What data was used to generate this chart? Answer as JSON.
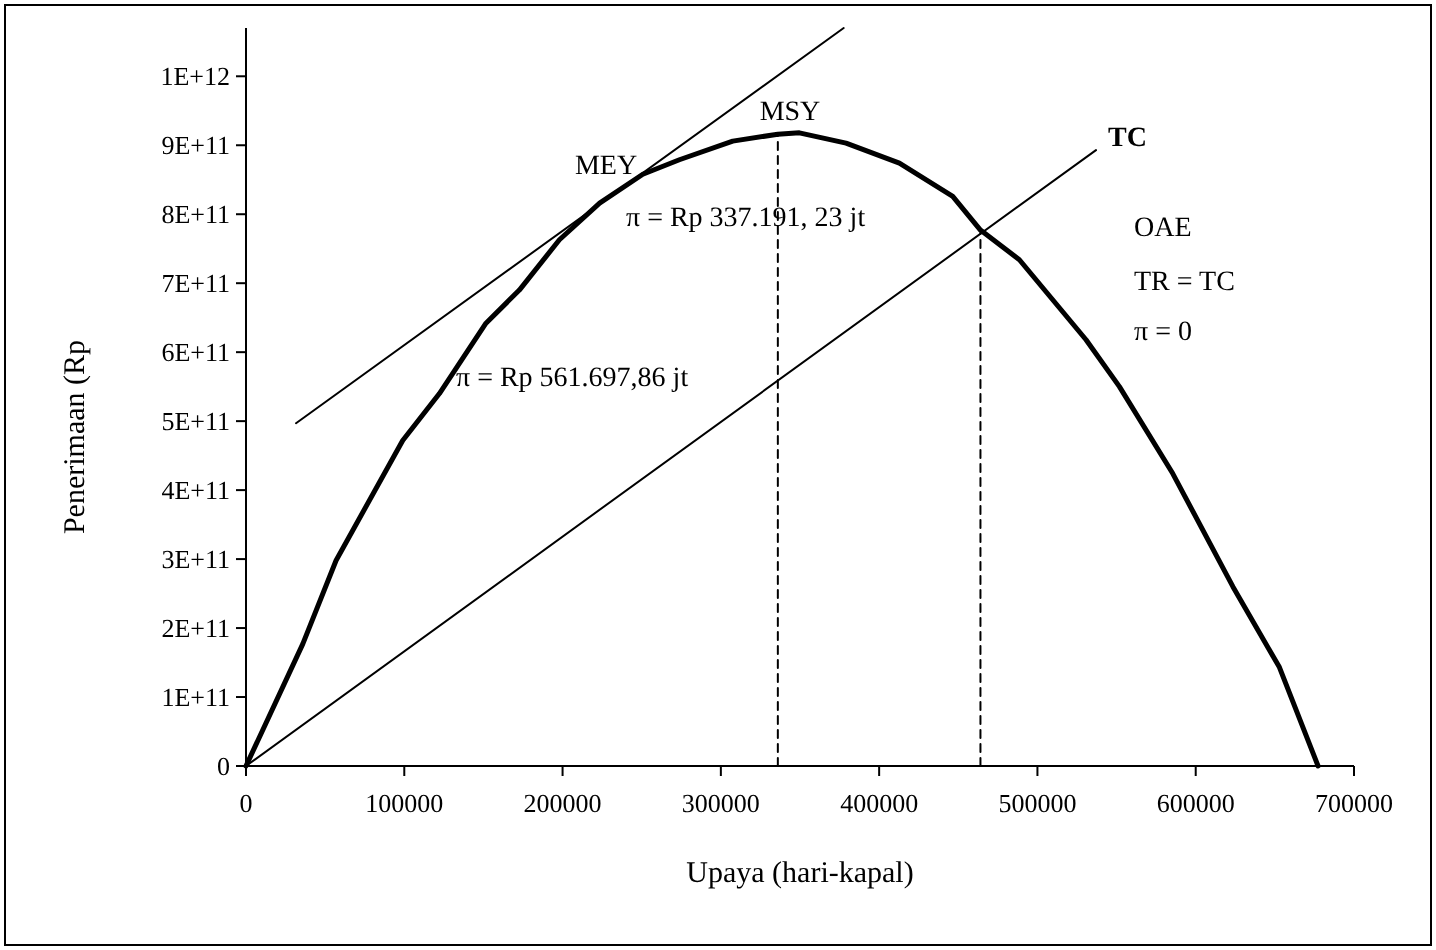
{
  "chart_data": {
    "type": "line",
    "xlabel": "Upaya (hari-kapal)",
    "ylabel": "Penerimaan (Rp",
    "xlim": [
      0,
      700000
    ],
    "xticks": [
      0,
      100000,
      200000,
      300000,
      400000,
      500000,
      600000,
      700000
    ],
    "ylim": [
      0,
      1070000000000
    ],
    "yticks": [
      0,
      {
        "value": 100000000000,
        "label": "1E+11"
      },
      {
        "value": 200000000000,
        "label": "2E+11"
      },
      {
        "value": 300000000000,
        "label": "3E+11"
      },
      {
        "value": 400000000000,
        "label": "4E+11"
      },
      {
        "value": 500000000000,
        "label": "5E+11"
      },
      {
        "value": 600000000000,
        "label": "6E+11"
      },
      {
        "value": 700000000000,
        "label": "7E+11"
      },
      {
        "value": 800000000000,
        "label": "8E+11"
      },
      {
        "value": 900000000000,
        "label": "9E+11"
      },
      {
        "value": 1000000000000,
        "label": "1E+12"
      }
    ],
    "marker": "none",
    "series": [
      {
        "color": "#000000",
        "line_style": "solid",
        "x": [
          0,
          35900,
          56900,
          99000,
          122200,
          151600,
          172700,
          198000,
          223400,
          250700,
          273800,
          307500,
          336000,
          349600,
          379100,
          412800,
          446500,
          464000,
          488600,
          530700,
          551800,
          585500,
          623500,
          652900,
          677300
        ],
        "values": [
          0,
          177000000000,
          298000000000,
          472000000000,
          540000000000,
          642000000000,
          690000000000,
          763000000000,
          816000000000,
          858000000000,
          879000000000,
          906000000000,
          916000000000,
          918000000000,
          903000000000,
          874000000000,
          826000000000,
          777000000000,
          734000000000,
          618000000000,
          550000000000,
          424000000000,
          260000000000,
          143000000000,
          0
        ]
      },
      {
        "name": "TC",
        "color": "#000000",
        "line_style": "solid",
        "x": [
          0,
          537000
        ],
        "values": [
          0,
          893000000000
        ]
      },
      {
        "color": "#000000",
        "line_style": "solid",
        "x": [
          31600,
          377600
        ],
        "values": [
          497000000000,
          1070000000000
        ]
      },
      {
        "color": "#000000",
        "line_style": "dashed",
        "x": [
          336000,
          336000
        ],
        "values": [
          0,
          916000000000
        ]
      },
      {
        "color": "#000000",
        "line_style": "dashed",
        "x": [
          464000,
          464000
        ],
        "values": [
          0,
          777000000000
        ]
      }
    ],
    "annotations": [
      "MSY",
      "MEY",
      "π = Rp 337.191, 23 jt",
      "π = Rp 561.697,86 jt",
      "OAE",
      "TR = TC",
      "π = 0"
    ]
  }
}
